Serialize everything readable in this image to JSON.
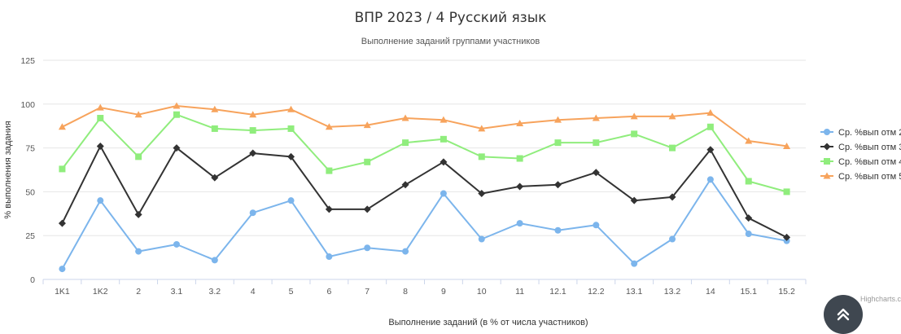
{
  "chart_data": {
    "type": "line",
    "title": "ВПР 2023 / 4 Русский язык",
    "subtitle": "Выполнение заданий группами участников",
    "xlabel": "Выполнение заданий (в % от числа участников)",
    "ylabel": "% выполнения задания",
    "ylim": [
      0,
      125
    ],
    "yticks": [
      0,
      25,
      50,
      75,
      100,
      125
    ],
    "grid": true,
    "legend_position": "right",
    "categories": [
      "1K1",
      "1K2",
      "2",
      "3.1",
      "3.2",
      "4",
      "5",
      "6",
      "7",
      "8",
      "9",
      "10",
      "11",
      "12.1",
      "12.2",
      "13.1",
      "13.2",
      "14",
      "15.1",
      "15.2"
    ],
    "series": [
      {
        "name": "Ср. %вып отм 2",
        "color": "#7cb5ec",
        "marker": "circle",
        "values": [
          6,
          45,
          16,
          20,
          11,
          38,
          45,
          13,
          18,
          16,
          49,
          23,
          32,
          28,
          31,
          9,
          23,
          57,
          26,
          22
        ]
      },
      {
        "name": "Ср. %вып отм 3",
        "color": "#333333",
        "marker": "diamond",
        "values": [
          32,
          76,
          37,
          75,
          58,
          72,
          70,
          40,
          40,
          54,
          67,
          49,
          53,
          54,
          61,
          45,
          47,
          74,
          35,
          24
        ]
      },
      {
        "name": "Ср. %вып отм 4",
        "color": "#90ed7d",
        "marker": "square",
        "values": [
          63,
          92,
          70,
          94,
          86,
          85,
          86,
          62,
          67,
          78,
          80,
          70,
          69,
          78,
          78,
          83,
          75,
          87,
          56,
          50
        ]
      },
      {
        "name": "Ср. %вып отм 5",
        "color": "#f7a35c",
        "marker": "triangle",
        "values": [
          87,
          98,
          94,
          99,
          97,
          94,
          97,
          87,
          88,
          92,
          91,
          86,
          89,
          91,
          92,
          93,
          93,
          95,
          79,
          76
        ]
      }
    ]
  },
  "credits": "Highcharts.com",
  "scroll_top_icon": "chevron-double-up-icon"
}
